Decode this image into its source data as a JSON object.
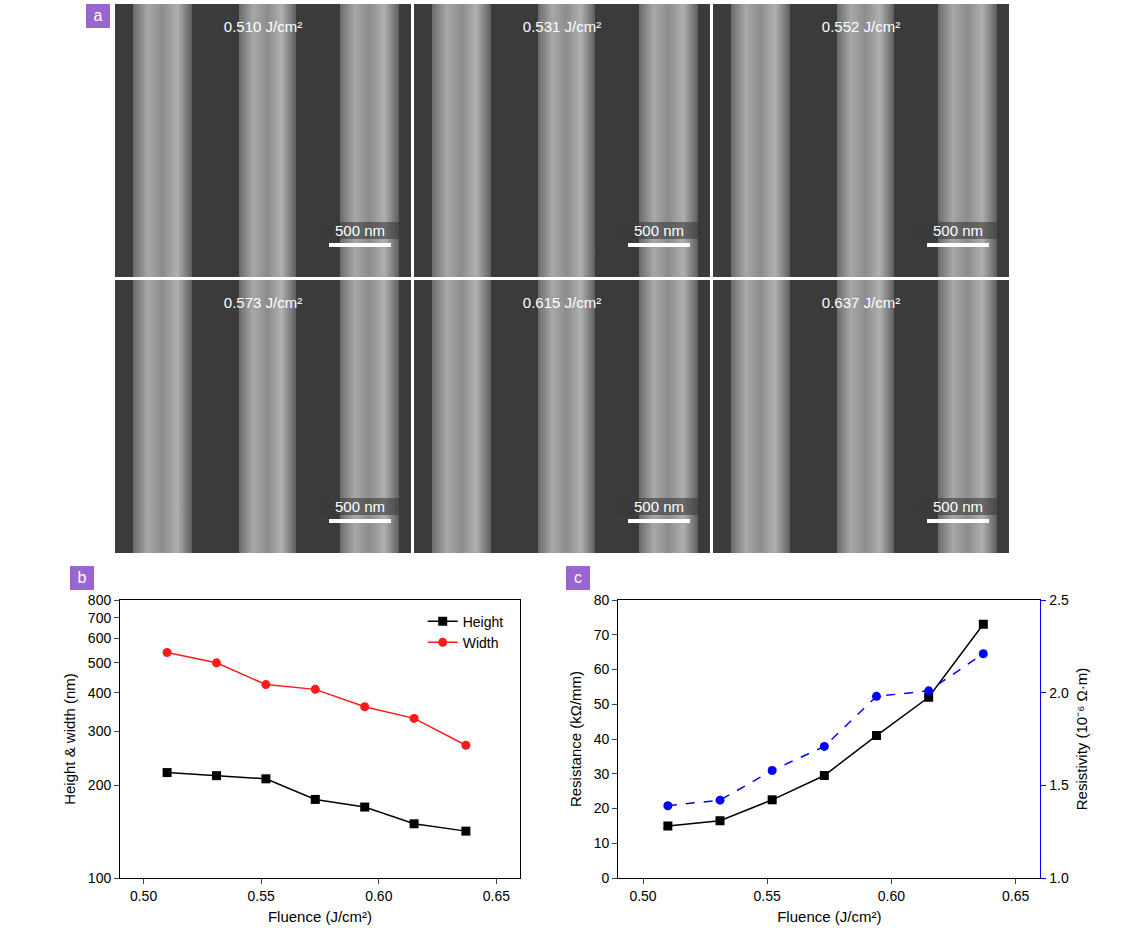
{
  "images": {
    "panel": "a",
    "items": [
      {
        "label": "0.510 J/cm²",
        "scale_bar": "500 nm"
      },
      {
        "label": "0.531 J/cm²",
        "scale_bar": "500 nm"
      },
      {
        "label": "0.552 J/cm²",
        "scale_bar": "500 nm"
      },
      {
        "label": "0.573 J/cm²",
        "scale_bar": "500 nm"
      },
      {
        "label": "0.615 J/cm²",
        "scale_bar": "500 nm"
      },
      {
        "label": "0.637 J/cm²",
        "scale_bar": "500 nm"
      }
    ]
  },
  "chart_data": [
    {
      "panel": "b",
      "type": "line",
      "x": [
        0.51,
        0.531,
        0.552,
        0.573,
        0.594,
        0.615,
        0.637
      ],
      "series": [
        {
          "name": "Height",
          "color": "#000000",
          "marker": "square",
          "line_style": "solid",
          "values": [
            220,
            215,
            210,
            180,
            170,
            150,
            142
          ]
        },
        {
          "name": "Width",
          "color": "#ff1a1a",
          "marker": "circle",
          "line_style": "solid",
          "values": [
            540,
            500,
            425,
            410,
            360,
            330,
            270
          ]
        }
      ],
      "x_label": "Fluence (J/cm²)",
      "y_label": "Height & width (nm)",
      "xlim": [
        0.49,
        0.66
      ],
      "xticks": [
        {
          "value": 0.5,
          "label": "0.50"
        },
        0.55,
        {
          "value": 0.6,
          "label": "0.60"
        },
        0.65
      ],
      "ylim": [
        100,
        800
      ],
      "yticks": [
        100,
        200,
        300,
        400,
        500,
        600,
        700,
        800
      ],
      "log": "y",
      "legend": "top right",
      "grid": false
    },
    {
      "panel": "c",
      "type": "line",
      "x": [
        0.51,
        0.531,
        0.552,
        0.573,
        0.594,
        0.615,
        0.637
      ],
      "series": [
        {
          "color": "#000000",
          "marker": "square",
          "line_style": "solid",
          "values": [
            15,
            16.5,
            22.5,
            29.5,
            41,
            52,
            73
          ]
        },
        {
          "color": "#0000ff",
          "marker": "circle",
          "line_style": "dash",
          "axis": "y2",
          "values": [
            1.39,
            1.42,
            1.58,
            1.71,
            1.98,
            2.01,
            2.21
          ]
        }
      ],
      "x_label": "Fluence (J/cm²)",
      "y_label": "Resistance (kΩ/mm)",
      "y2_label": "Resistivity (10⁻⁶ Ω·m)",
      "xlim": [
        0.49,
        0.66
      ],
      "xticks": [
        {
          "value": 0.5,
          "label": "0.50"
        },
        0.55,
        {
          "value": 0.6,
          "label": "0.60"
        },
        0.65
      ],
      "ylim": [
        0,
        80
      ],
      "yticks": [
        0,
        10,
        20,
        30,
        40,
        50,
        60,
        70,
        80
      ],
      "y2lim": [
        1.0,
        2.5
      ],
      "y2ticks": [
        {
          "value": 1,
          "label": "1.0"
        },
        1.5,
        {
          "value": 2,
          "label": "2.0"
        },
        2.5
      ],
      "grid": false
    }
  ]
}
